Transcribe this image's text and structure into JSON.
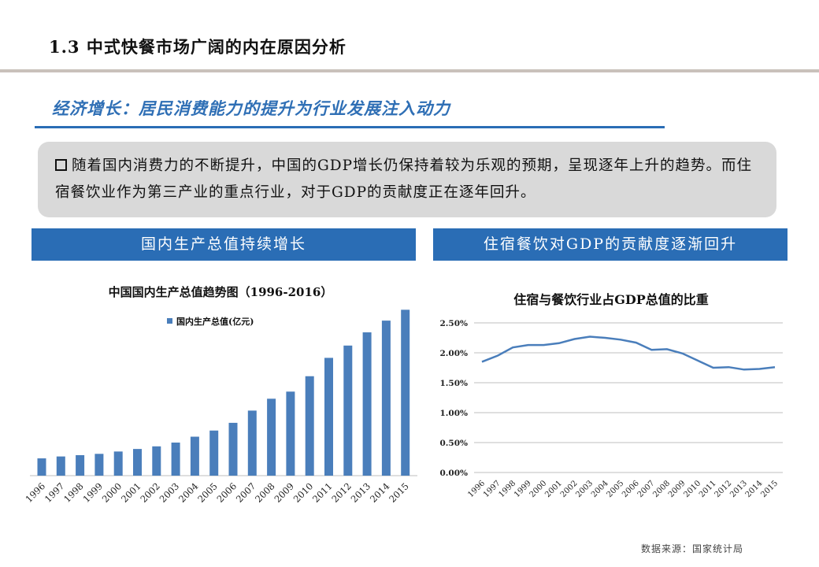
{
  "header": {
    "page_title": "1.3 中式快餐市场广阔的内在原因分析",
    "subtitle": "经济增长：居民消费能力的提升为行业发展注入动力"
  },
  "callout": {
    "text": "随着国内消费力的不断提升，中国的GDP增长仍保持着较为乐观的预期，呈现逐年上升的趋势。而住宿餐饮业作为第三产业的重点行业，对于GDP的贡献度正在逐年回升。"
  },
  "banners": {
    "left": "国内生产总值持续增长",
    "right": "住宿餐饮对GDP的贡献度逐渐回升"
  },
  "colors": {
    "accent": "#2a6db5",
    "bar": "#4a7ebb",
    "line": "#4a7ebb",
    "callout_bg": "#d9d9d9"
  },
  "chart_data": [
    {
      "type": "bar",
      "title": "中国国内生产总值趋势图（1996-2016）",
      "legend": "top-left",
      "grid": false,
      "categories": [
        "1996",
        "1997",
        "1998",
        "1999",
        "2000",
        "2001",
        "2002",
        "2003",
        "2004",
        "2005",
        "2006",
        "2007",
        "2008",
        "2009",
        "2010",
        "2011",
        "2012",
        "2013",
        "2014",
        "2015"
      ],
      "series": [
        {
          "name": "国内生产总值(亿元)",
          "values": [
            71814,
            79715,
            85196,
            90564,
            100280,
            110863,
            121717,
            137422,
            161840,
            187319,
            219439,
            270232,
            319516,
            349081,
            413030,
            489301,
            540367,
            595244,
            643974,
            689052
          ]
        }
      ],
      "ylim": [
        0,
        700000
      ]
    },
    {
      "type": "line",
      "title": "住宿与餐饮行业占GDP总值的比重",
      "grid": true,
      "categories": [
        "1996",
        "1997",
        "1998",
        "1999",
        "2000",
        "2001",
        "2002",
        "2003",
        "2004",
        "2005",
        "2006",
        "2007",
        "2008",
        "2009",
        "2010",
        "2011",
        "2012",
        "2013",
        "2014",
        "2015"
      ],
      "yticks": [
        "0.00%",
        "0.50%",
        "1.00%",
        "1.50%",
        "2.00%",
        "2.50%"
      ],
      "ylim": [
        0,
        2.5
      ],
      "series": [
        {
          "values": [
            1.85,
            1.95,
            2.09,
            2.13,
            2.13,
            2.16,
            2.23,
            2.27,
            2.25,
            2.22,
            2.17,
            2.05,
            2.06,
            1.99,
            1.87,
            1.75,
            1.76,
            1.72,
            1.73,
            1.76
          ]
        }
      ]
    }
  ],
  "footer": {
    "source": "数据来源：国家统计局"
  }
}
